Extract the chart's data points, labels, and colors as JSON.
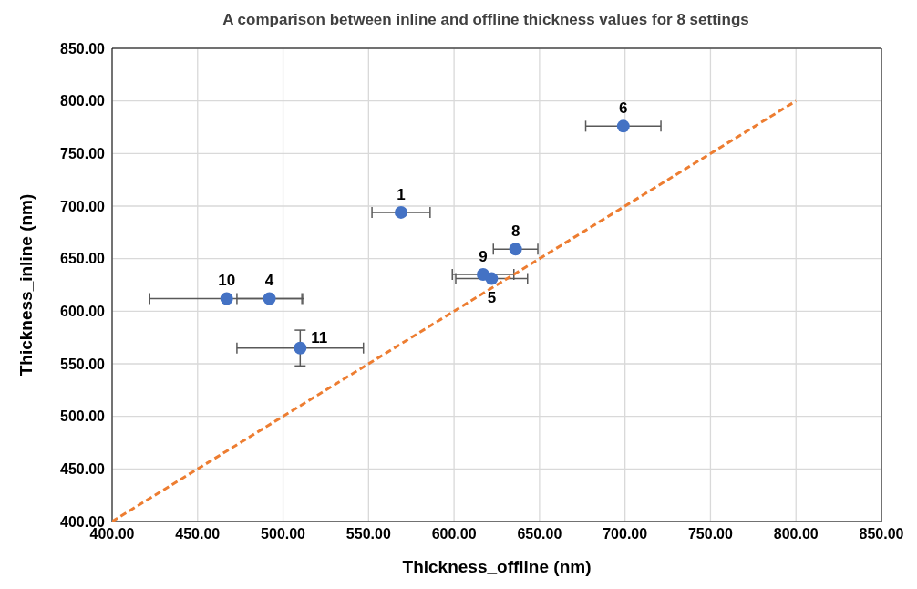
{
  "chart_data": {
    "type": "scatter",
    "title": "A comparison between inline and offline thickness values for 8 settings",
    "xlabel": "Thickness_offline (nm)",
    "ylabel": "Thickness_inline (nm)",
    "xlim": [
      400,
      850
    ],
    "ylim": [
      400,
      850
    ],
    "xticks": [
      {
        "value": 400,
        "label": "400.00"
      },
      {
        "value": 450,
        "label": "450.00"
      },
      {
        "value": 500,
        "label": "500.00"
      },
      {
        "value": 550,
        "label": "550.00"
      },
      {
        "value": 600,
        "label": "600.00"
      },
      {
        "value": 650,
        "label": "650.00"
      },
      {
        "value": 700,
        "label": "700.00"
      },
      {
        "value": 750,
        "label": "750.00"
      },
      {
        "value": 800,
        "label": "800.00"
      },
      {
        "value": 850,
        "label": "850.00"
      }
    ],
    "yticks": [
      {
        "value": 400,
        "label": "400.00"
      },
      {
        "value": 450,
        "label": "450.00"
      },
      {
        "value": 500,
        "label": "500.00"
      },
      {
        "value": 550,
        "label": "550.00"
      },
      {
        "value": 600,
        "label": "600.00"
      },
      {
        "value": 650,
        "label": "650.00"
      },
      {
        "value": 700,
        "label": "700.00"
      },
      {
        "value": 750,
        "label": "750.00"
      },
      {
        "value": 800,
        "label": "800.00"
      },
      {
        "value": 850,
        "label": "850.00"
      }
    ],
    "grid": true,
    "marker": "circle",
    "series": [
      {
        "type": "scatter",
        "color": "#4472c4",
        "x": [
          569,
          699,
          636,
          617,
          622,
          467,
          492,
          510
        ],
        "values": [
          694,
          776,
          659,
          635,
          631,
          612,
          612,
          565
        ],
        "xerrors": [
          17,
          22,
          13,
          18,
          21,
          45,
          19,
          37
        ],
        "errors": [
          null,
          null,
          null,
          null,
          null,
          null,
          null,
          17
        ]
      },
      {
        "type": "line",
        "color": "#ed7d31",
        "x": [
          400,
          800
        ],
        "values": [
          400,
          800
        ],
        "line_style": "dashed",
        "marker": "none"
      }
    ],
    "annotations": [
      {
        "text": "1",
        "x": 569,
        "y": 694
      },
      {
        "text": "6",
        "x": 699,
        "y": 776
      },
      {
        "text": "8",
        "x": 636,
        "y": 659
      },
      {
        "text": "9",
        "x": 617,
        "y": 635
      },
      {
        "text": "5",
        "x": 622,
        "y": 631
      },
      {
        "text": "10",
        "x": 467,
        "y": 612
      },
      {
        "text": "4",
        "x": 492,
        "y": 612
      },
      {
        "text": "11",
        "x": 510,
        "y": 565
      }
    ]
  }
}
